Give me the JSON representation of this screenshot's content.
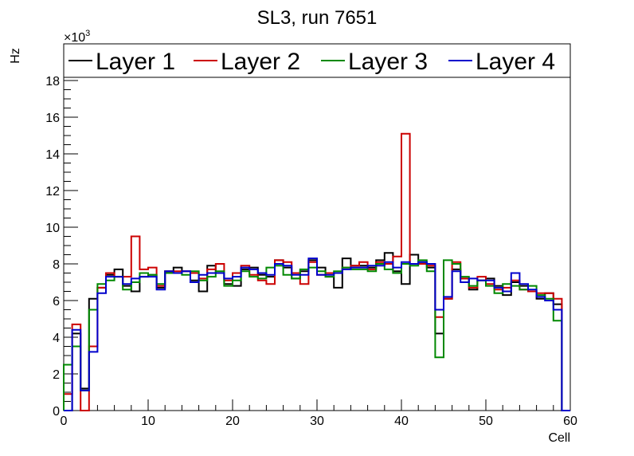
{
  "chart_data": {
    "type": "line",
    "drawstyle": "steps-histogram",
    "title": "SL3, run 7651",
    "xlabel": "Cell",
    "ylabel": "Hz",
    "y_exponent_base": "×10",
    "y_exponent_power": "3",
    "xlim": [
      0,
      60
    ],
    "ylim": [
      0,
      20000
    ],
    "x_bin_edges_start": 0,
    "x_bin_width": 1,
    "x_ticks": [
      0,
      10,
      20,
      30,
      40,
      50,
      60
    ],
    "x_tick_labels": [
      "0",
      "10",
      "20",
      "30",
      "40",
      "50",
      "60"
    ],
    "y_ticks": [
      0,
      2000,
      4000,
      6000,
      8000,
      10000,
      12000,
      14000,
      16000,
      18000
    ],
    "y_tick_labels": [
      "0",
      "2",
      "4",
      "6",
      "8",
      "10",
      "12",
      "14",
      "16",
      "18"
    ],
    "legend_position": "top",
    "series": [
      {
        "name": "Layer 1",
        "color": "#000000",
        "values": [
          0,
          4200,
          1200,
          6100,
          6700,
          7400,
          7700,
          6800,
          6500,
          7300,
          7400,
          6700,
          7600,
          7800,
          7600,
          7100,
          6500,
          7900,
          7500,
          6900,
          6800,
          7700,
          7800,
          7400,
          7300,
          8200,
          7800,
          7200,
          7600,
          8200,
          7800,
          7300,
          6700,
          8300,
          7900,
          7900,
          7800,
          8200,
          8600,
          7600,
          6900,
          8500,
          8100,
          7800,
          4200,
          6100,
          7700,
          7200,
          6600,
          7100,
          7200,
          6800,
          6300,
          7000,
          6800,
          6500,
          6100,
          6400,
          5800,
          0
        ]
      },
      {
        "name": "Layer 2",
        "color": "#cc0000",
        "values": [
          900,
          4700,
          0,
          3500,
          6700,
          7500,
          7300,
          7300,
          9500,
          7700,
          7800,
          6800,
          7600,
          7600,
          7600,
          7500,
          7200,
          7700,
          8000,
          7100,
          7500,
          7900,
          7400,
          7100,
          6900,
          8200,
          8100,
          7500,
          6900,
          8100,
          7400,
          7500,
          7500,
          7800,
          7900,
          8100,
          7700,
          8100,
          8000,
          8400,
          15100,
          8000,
          8000,
          7900,
          5100,
          6100,
          8100,
          7200,
          6700,
          7300,
          6900,
          6600,
          6700,
          7100,
          6600,
          6500,
          6400,
          6400,
          6100,
          0
        ]
      },
      {
        "name": "Layer 3",
        "color": "#008800",
        "values": [
          2500,
          3500,
          1100,
          5500,
          6900,
          7100,
          7300,
          6600,
          7000,
          7500,
          7400,
          6900,
          7500,
          7500,
          7400,
          7600,
          7100,
          7300,
          7600,
          6800,
          7100,
          7600,
          7300,
          7200,
          7800,
          7900,
          7400,
          7200,
          7700,
          7800,
          7600,
          7300,
          7600,
          7800,
          7700,
          7700,
          7600,
          8000,
          7700,
          7500,
          8000,
          7900,
          8200,
          7600,
          2900,
          8200,
          8000,
          7300,
          6800,
          7100,
          6800,
          6400,
          6900,
          6800,
          6600,
          6800,
          6300,
          6100,
          4900,
          0
        ]
      },
      {
        "name": "Layer 4",
        "color": "#0000cc",
        "values": [
          0,
          4400,
          1100,
          3200,
          6400,
          7300,
          7300,
          6900,
          7200,
          7300,
          7300,
          6600,
          7600,
          7500,
          7600,
          7000,
          7400,
          7500,
          7500,
          7200,
          7300,
          7800,
          7700,
          7500,
          7400,
          8000,
          7900,
          7400,
          7400,
          8300,
          7400,
          7400,
          7500,
          7700,
          7800,
          7800,
          7900,
          7900,
          8100,
          7800,
          8100,
          8000,
          8100,
          8000,
          5500,
          6200,
          7600,
          7000,
          7200,
          7100,
          7100,
          6700,
          6500,
          7500,
          6900,
          6600,
          6200,
          6000,
          5500,
          0
        ]
      }
    ]
  }
}
